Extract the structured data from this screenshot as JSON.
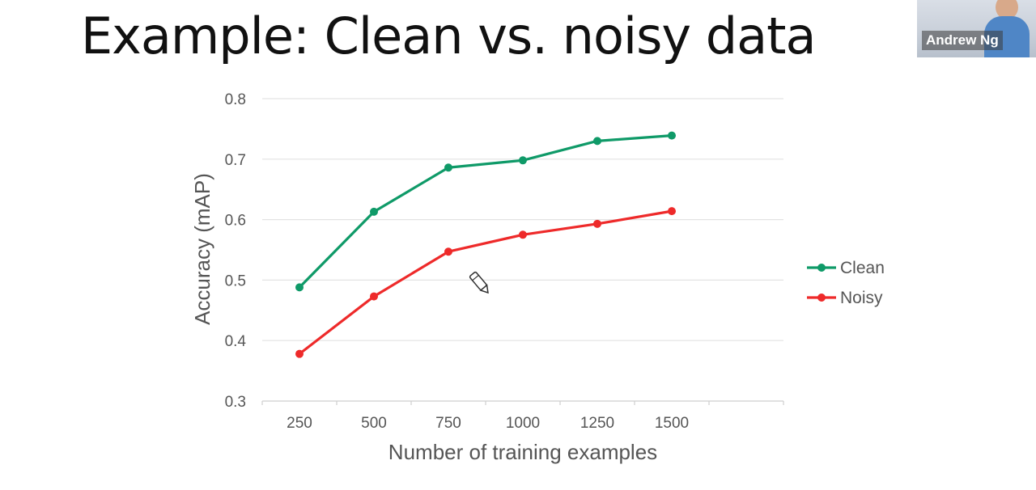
{
  "slide": {
    "title": "Example: Clean vs. noisy data"
  },
  "video": {
    "participant_name": "Andrew Ng"
  },
  "chart_data": {
    "type": "line",
    "title": "",
    "xlabel": "Number of training examples",
    "ylabel": "Accuracy (mAP)",
    "x": [
      250,
      500,
      750,
      1000,
      1250,
      1500
    ],
    "x_tick_labels": [
      "250",
      "500",
      "750",
      "1000",
      "1250",
      "1500"
    ],
    "y_ticks": [
      0.3,
      0.4,
      0.5,
      0.6,
      0.7,
      0.8
    ],
    "y_tick_labels": [
      "0.3",
      "0.4",
      "0.5",
      "0.6",
      "0.7",
      "0.8"
    ],
    "ylim": [
      0.3,
      0.8
    ],
    "grid": true,
    "legend_position": "right",
    "series": [
      {
        "name": "Clean",
        "color": "#0f9a68",
        "values": [
          0.488,
          0.613,
          0.686,
          0.698,
          0.73,
          0.739
        ]
      },
      {
        "name": "Noisy",
        "color": "#ee2a2a",
        "values": [
          0.378,
          0.473,
          0.547,
          0.575,
          0.593,
          0.614
        ]
      }
    ]
  }
}
